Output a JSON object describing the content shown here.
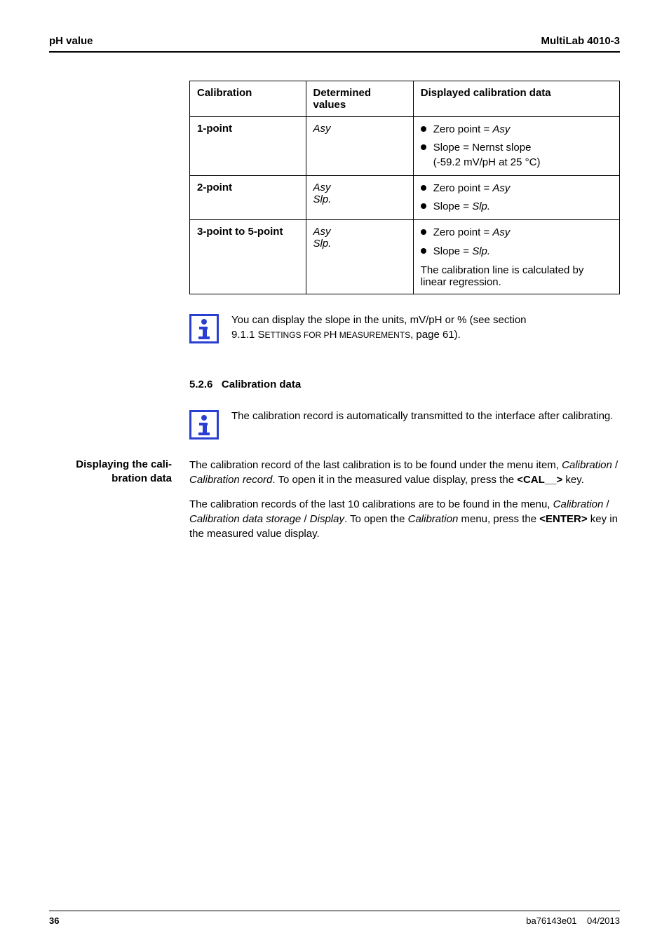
{
  "header": {
    "left": "pH value",
    "right": "MultiLab 4010-3"
  },
  "table": {
    "columns": [
      "Calibration",
      "Determined values",
      "Displayed calibration data"
    ],
    "col_widths_pct": [
      27,
      25,
      48
    ],
    "rows": [
      {
        "c0": "1-point",
        "c1_lines": [
          "Asy"
        ],
        "bullets": [
          {
            "prefix": "Zero point = ",
            "italic": "Asy"
          },
          {
            "prefix": "Slope = Nernst slope",
            "br": true,
            "cont": "(-59.2 mV/pH at 25 °C)"
          }
        ]
      },
      {
        "c0": "2-point",
        "c1_lines": [
          "Asy",
          "Slp."
        ],
        "bullets": [
          {
            "prefix": "Zero point = ",
            "italic": "Asy"
          },
          {
            "prefix": "Slope = ",
            "italic": "Slp."
          }
        ]
      },
      {
        "c0": "3-point to 5-point",
        "c1_lines": [
          "Asy",
          "Slp."
        ],
        "bullets": [
          {
            "prefix": "Zero point = ",
            "italic": "Asy"
          },
          {
            "prefix": "Slope = ",
            "italic": "Slp."
          }
        ],
        "tail": "The calibration line is calculated by linear regression."
      }
    ]
  },
  "note1": {
    "line1": "You can display the slope in the units, mV/pH or % (see section",
    "line2_a": "9.1.1 S",
    "line2_sc": "ETTINGS FOR P",
    "line2_b": "H",
    "line2_sc2": " MEASUREMENTS",
    "line2_c": ", page 61)."
  },
  "section": {
    "number": "5.2.6",
    "title": "Calibration data"
  },
  "note2": "The calibration record is automatically transmitted to the interface after calibrating.",
  "side_label": {
    "line1": "Displaying the cali-",
    "line2": "bration data"
  },
  "para1": {
    "a": "The calibration record of the last calibration is to be found under the menu item, ",
    "i1": "Calibration",
    "sep1": " / ",
    "i2": "Calibration record",
    "b": ". To open it in the measured value display, press the ",
    "key": "<CAL__>",
    "c": " key."
  },
  "para2": {
    "a": "The calibration records of the last 10 calibrations are to be found in the menu, ",
    "i1": "Calibration",
    "sep1": " / ",
    "i2": "Calibration data storage",
    "sep2": " / ",
    "i3": "Display",
    "b": ". To open the ",
    "i4": "Calibration",
    "c": " menu, press the ",
    "key": "<ENTER>",
    "d": " key in the measured value display."
  },
  "footer": {
    "page": "36",
    "code": "ba76143e01",
    "date": "04/2013"
  },
  "colors": {
    "rule": "#000000",
    "icon": "#2a3fd1",
    "text": "#000000",
    "bg": "#ffffff"
  },
  "fonts": {
    "body_size": 15,
    "footer_size": 13
  }
}
